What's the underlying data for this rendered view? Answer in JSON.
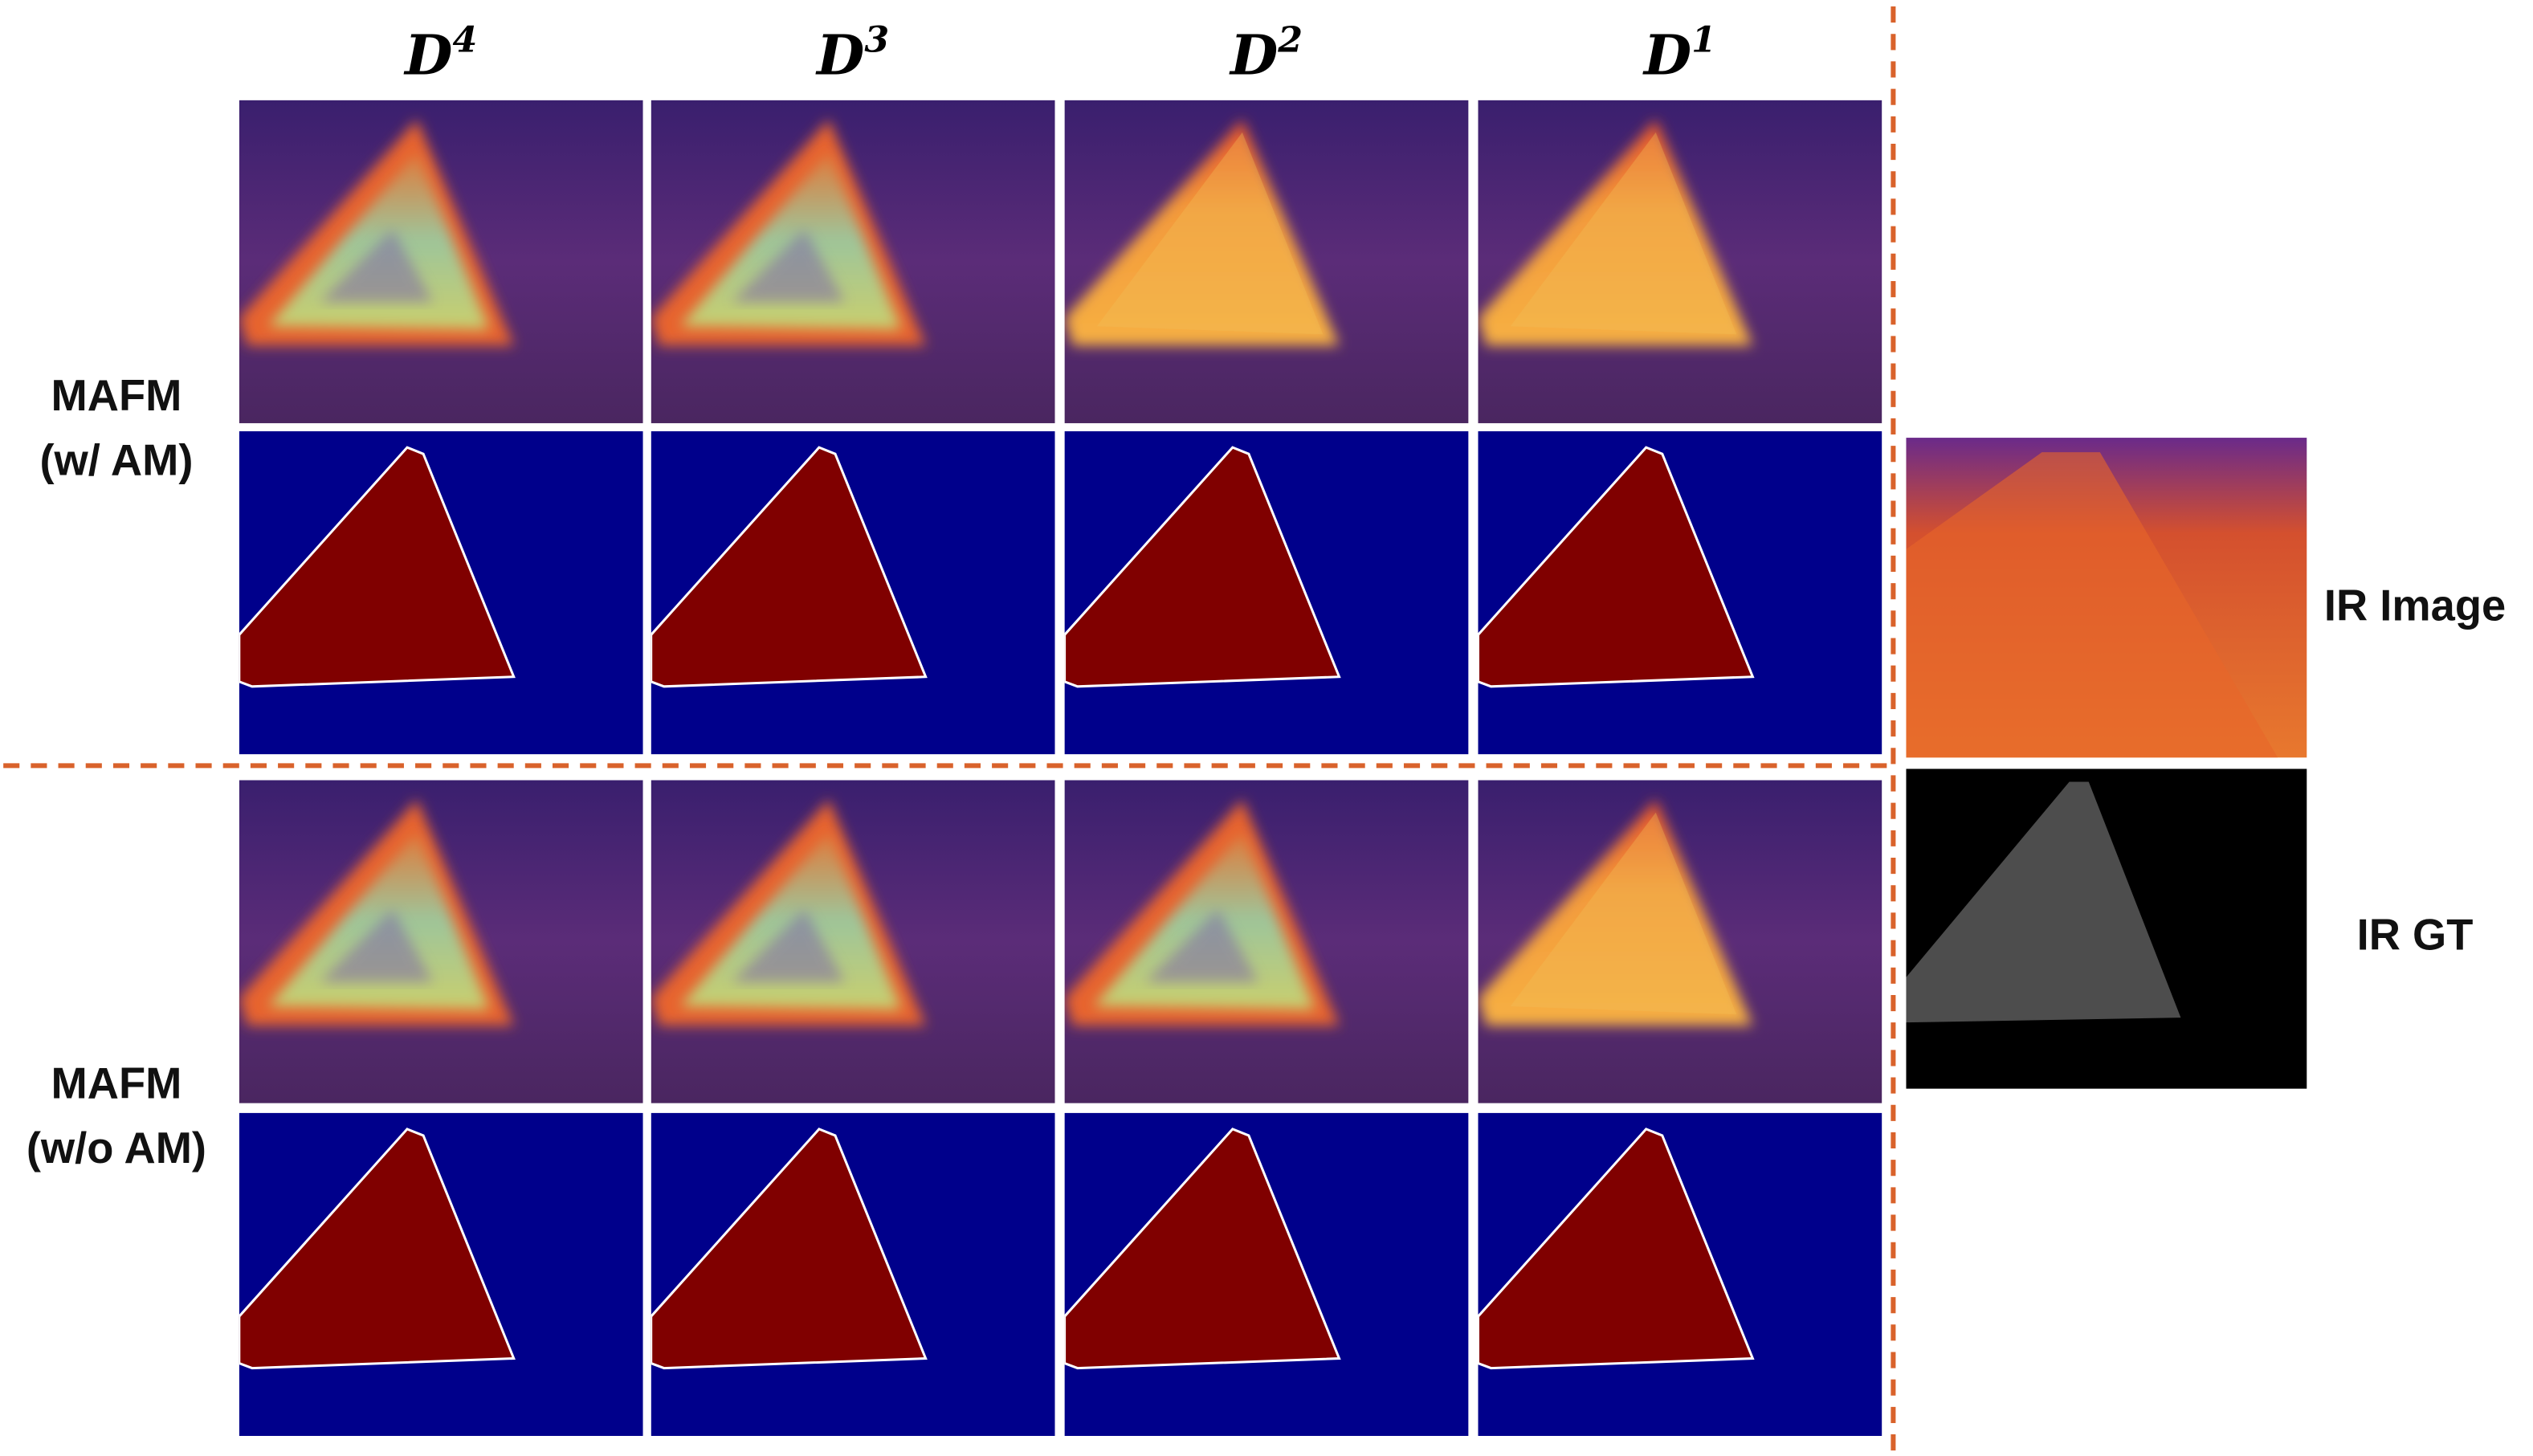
{
  "columns": [
    {
      "letter": "D",
      "exponent": "4"
    },
    {
      "letter": "D",
      "exponent": "3"
    },
    {
      "letter": "D",
      "exponent": "2"
    },
    {
      "letter": "D",
      "exponent": "1"
    }
  ],
  "rows": [
    {
      "label": [
        "MAFM",
        "(w/ AM)"
      ]
    },
    {
      "label": [
        "MAFM",
        "(w/o AM)"
      ]
    }
  ],
  "side": {
    "image_label": "IR Image",
    "gt_label": "IR GT"
  }
}
